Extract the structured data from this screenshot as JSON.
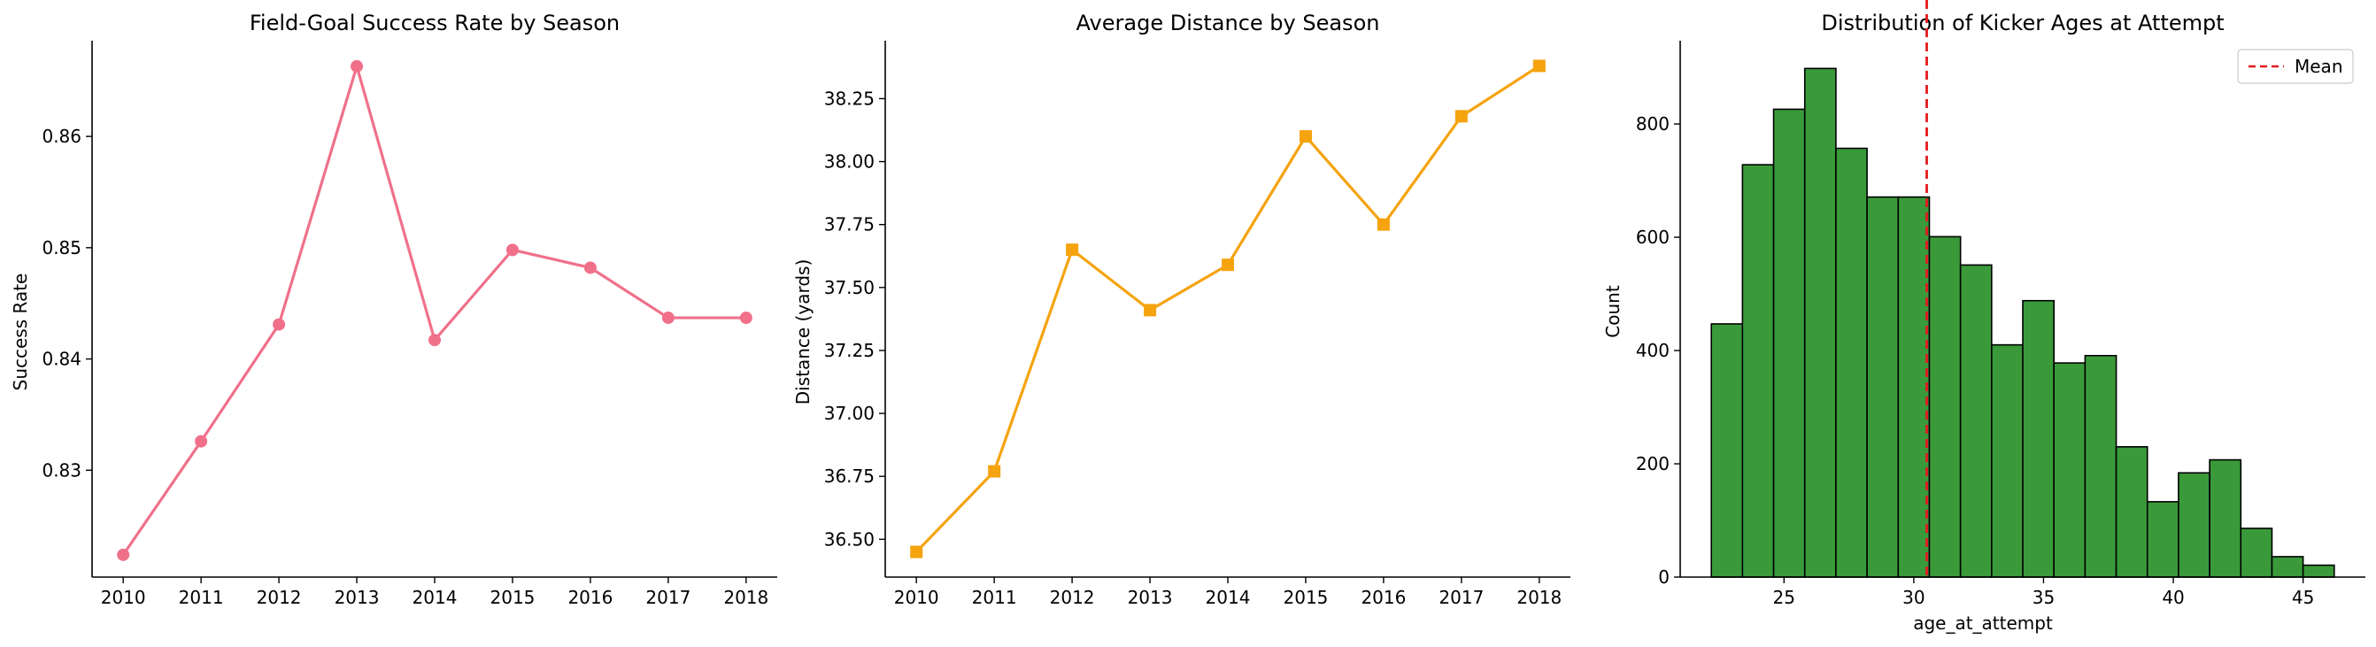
{
  "chart_data": [
    {
      "type": "line",
      "title": "Field-Goal Success Rate by Season",
      "xlabel": "",
      "ylabel": "Success Rate",
      "color": "#f0708a",
      "marker": "circle",
      "x": [
        2010,
        2011,
        2012,
        2013,
        2014,
        2015,
        2016,
        2017,
        2018
      ],
      "y": [
        0.8224,
        0.8326,
        0.8431,
        0.8663,
        0.8417,
        0.8498,
        0.8482,
        0.8437,
        0.8437
      ],
      "ylim": [
        0.8204,
        0.8686
      ],
      "yticks": [
        0.83,
        0.84,
        0.85,
        0.86
      ],
      "yticklabels": [
        "0.83",
        "0.84",
        "0.85",
        "0.86"
      ],
      "xticks": [
        2010,
        2011,
        2012,
        2013,
        2014,
        2015,
        2016,
        2017,
        2018
      ],
      "xticklabels": [
        "2010",
        "2011",
        "2012",
        "2013",
        "2014",
        "2015",
        "2016",
        "2017",
        "2018"
      ],
      "grid": false
    },
    {
      "type": "line",
      "title": "Average Distance by Season",
      "xlabel": "",
      "ylabel": "Distance (yards)",
      "color": "#f5a30f",
      "marker": "square",
      "x": [
        2010,
        2011,
        2012,
        2013,
        2014,
        2015,
        2016,
        2017,
        2018
      ],
      "y": [
        36.45,
        36.77,
        37.65,
        37.41,
        37.59,
        38.1,
        37.75,
        38.18,
        38.38
      ],
      "ylim": [
        36.35,
        38.48
      ],
      "yticks": [
        36.5,
        36.75,
        37.0,
        37.25,
        37.5,
        37.75,
        38.0,
        38.25
      ],
      "yticklabels": [
        "36.50",
        "36.75",
        "37.00",
        "37.25",
        "37.50",
        "37.75",
        "38.00",
        "38.25"
      ],
      "xticks": [
        2010,
        2011,
        2012,
        2013,
        2014,
        2015,
        2016,
        2017,
        2018
      ],
      "xticklabels": [
        "2010",
        "2011",
        "2012",
        "2013",
        "2014",
        "2015",
        "2016",
        "2017",
        "2018"
      ],
      "grid": false
    },
    {
      "type": "histogram",
      "title": "Distribution of Kicker Ages at Attempt",
      "xlabel": "age_at_attempt",
      "ylabel": "Count",
      "color": "#3a9a3a",
      "edgecolor": "#000000",
      "bin_edges": [
        22.2,
        23.4,
        24.6,
        25.8,
        27.0,
        28.2,
        29.4,
        30.6,
        31.8,
        33.0,
        34.2,
        35.4,
        36.6,
        37.8,
        39.0,
        40.2,
        41.4,
        42.6,
        43.8,
        45.0,
        46.2
      ],
      "counts": [
        447,
        728,
        826,
        898,
        757,
        671,
        671,
        601,
        551,
        410,
        488,
        378,
        391,
        230,
        133,
        184,
        207,
        86,
        36,
        21
      ],
      "xlim": [
        21.0,
        47.4
      ],
      "ylim": [
        0,
        947
      ],
      "xticks": [
        25,
        30,
        35,
        40,
        45
      ],
      "xticklabels": [
        "25",
        "30",
        "35",
        "40",
        "45"
      ],
      "yticks": [
        0,
        200,
        400,
        600,
        800
      ],
      "yticklabels": [
        "0",
        "200",
        "400",
        "600",
        "800"
      ],
      "mean_line": {
        "x": 30.5,
        "color": "#e41a1c",
        "label": "Mean"
      },
      "legend": {
        "position": "top-right",
        "entries": [
          "Mean"
        ]
      },
      "grid": false
    }
  ]
}
